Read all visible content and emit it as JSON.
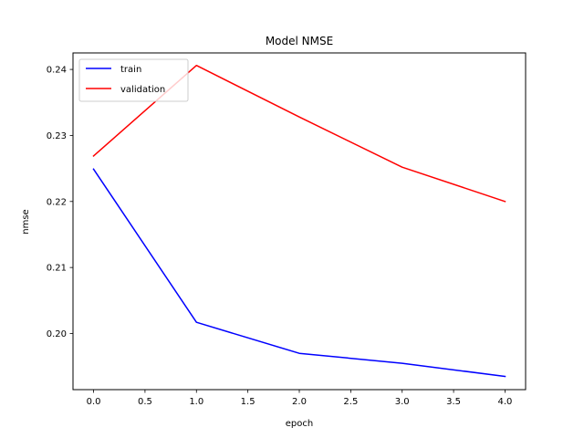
{
  "chart_data": {
    "type": "line",
    "title": "Model NMSE",
    "xlabel": "epoch",
    "ylabel": "nmse",
    "x": [
      0,
      1,
      2,
      3,
      4
    ],
    "series": [
      {
        "name": "train",
        "color": "#0000ff",
        "values": [
          0.2249,
          0.2017,
          0.197,
          0.1955,
          0.1935
        ]
      },
      {
        "name": "validation",
        "color": "#ff0000",
        "values": [
          0.2269,
          0.2406,
          0.2328,
          0.2252,
          0.22
        ]
      }
    ],
    "xlim": [
      -0.2,
      4.2
    ],
    "ylim": [
      0.1915,
      0.2425
    ],
    "xticks": [
      0.0,
      0.5,
      1.0,
      1.5,
      2.0,
      2.5,
      3.0,
      3.5,
      4.0
    ],
    "xtick_labels": [
      "0.0",
      "0.5",
      "1.0",
      "1.5",
      "2.0",
      "2.5",
      "3.0",
      "3.5",
      "4.0"
    ],
    "yticks": [
      0.2,
      0.21,
      0.22,
      0.23,
      0.24
    ],
    "ytick_labels": [
      "0.20",
      "0.21",
      "0.22",
      "0.23",
      "0.24"
    ],
    "grid": false,
    "legend_position": "upper-left"
  }
}
